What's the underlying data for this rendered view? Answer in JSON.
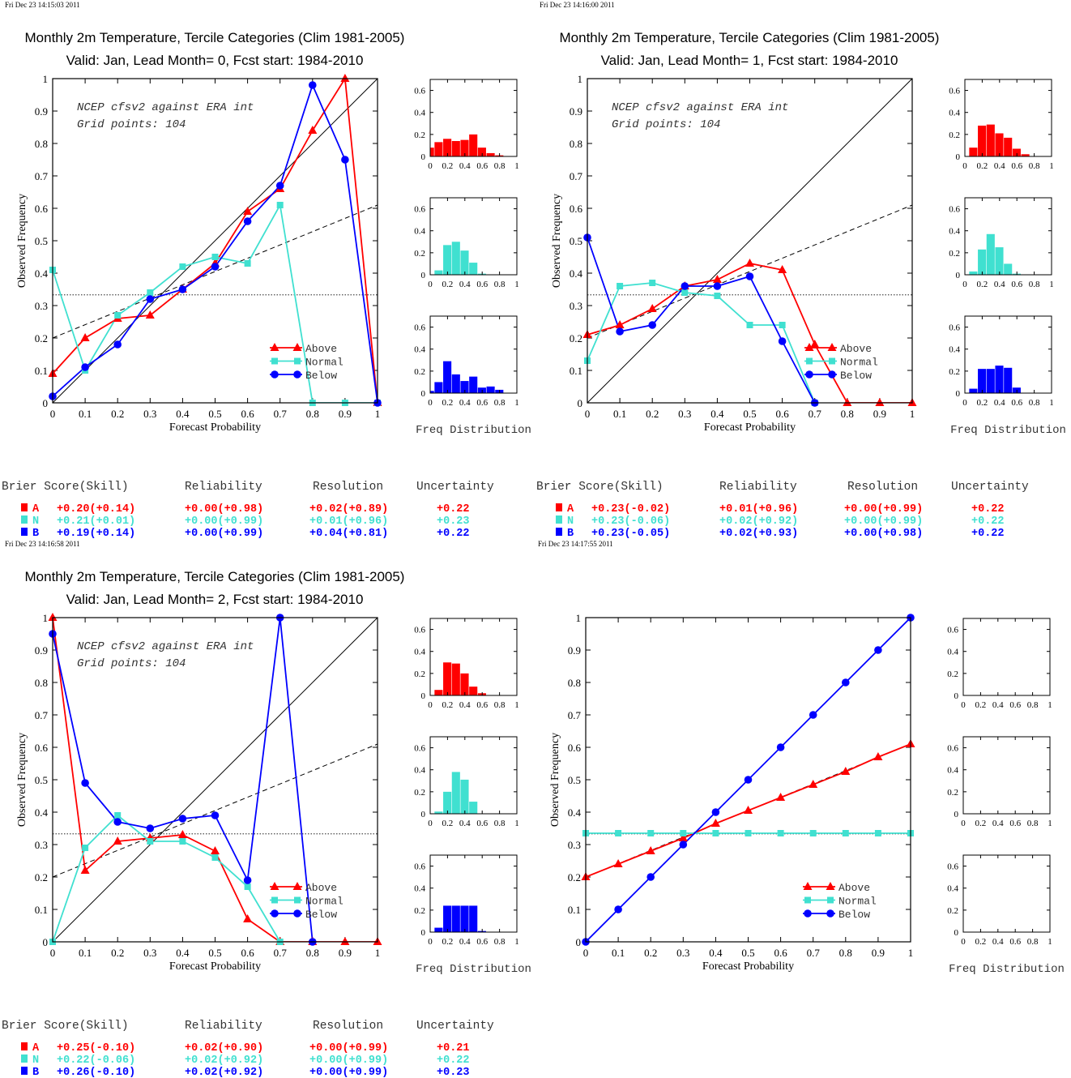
{
  "colors": {
    "above": "#ff0000",
    "normal": "#40e0d0",
    "below": "#0000ff",
    "axis": "#000000"
  },
  "labels": {
    "xlabel": "Forecast Probability",
    "ylabel": "Observed Frequency",
    "freq_label": "Freq Distribution",
    "legend": [
      "Above",
      "Normal",
      "Below"
    ],
    "score_headers": [
      "Brier Score(Skill)",
      "Reliability",
      "Resolution",
      "Uncertainty"
    ],
    "cat_letters": [
      "A",
      "N",
      "B"
    ]
  },
  "ticks": {
    "main_x": [
      "0",
      "0.1",
      "0.2",
      "0.3",
      "0.4",
      "0.5",
      "0.6",
      "0.7",
      "0.8",
      "0.9",
      "1"
    ],
    "main_y": [
      "0",
      "0.1",
      "0.2",
      "0.3",
      "0.4",
      "0.5",
      "0.6",
      "0.7",
      "0.8",
      "0.9",
      "1"
    ],
    "hist_x": [
      "0",
      "0.2",
      "0.4",
      "0.6",
      "0.8",
      "1"
    ],
    "hist_y": [
      "0",
      "0.2",
      "0.4",
      "0.6"
    ]
  },
  "chart_data": [
    {
      "type": "line",
      "timestamp": "Fri Dec 23 14:15:03 2011",
      "title": "Monthly 2m Temperature, Tercile Categories (Clim 1981-2005)",
      "subtitle": "Valid: Jan, Lead Month= 0, Fcst start: 1984-2010",
      "annotation": [
        "NCEP cfsv2 against ERA int",
        "Grid points:  104"
      ],
      "xlim": [
        0,
        1
      ],
      "ylim": [
        0,
        1
      ],
      "series": [
        {
          "name": "Above",
          "marker": "triangle",
          "x": [
            0,
            0.1,
            0.2,
            0.3,
            0.4,
            0.5,
            0.6,
            0.7,
            0.8,
            0.9,
            1
          ],
          "y": [
            0.09,
            0.2,
            0.26,
            0.27,
            0.35,
            0.43,
            0.59,
            0.66,
            0.84,
            1.0,
            0
          ]
        },
        {
          "name": "Normal",
          "marker": "square",
          "x": [
            0,
            0.1,
            0.2,
            0.3,
            0.4,
            0.5,
            0.6,
            0.7,
            0.8,
            0.9,
            1
          ],
          "y": [
            0.41,
            0.1,
            0.27,
            0.34,
            0.42,
            0.45,
            0.43,
            0.61,
            0,
            0,
            0
          ]
        },
        {
          "name": "Below",
          "marker": "circle",
          "x": [
            0,
            0.1,
            0.2,
            0.3,
            0.4,
            0.5,
            0.6,
            0.7,
            0.8,
            0.9,
            1
          ],
          "y": [
            0.02,
            0.11,
            0.18,
            0.32,
            0.35,
            0.42,
            0.56,
            0.67,
            0.98,
            0.75,
            0
          ]
        }
      ],
      "histograms": {
        "Above": [
          0.08,
          0.13,
          0.16,
          0.14,
          0.15,
          0.2,
          0.08,
          0.03,
          0.01,
          0,
          0
        ],
        "Normal": [
          0,
          0.04,
          0.27,
          0.3,
          0.22,
          0.11,
          0.01,
          0,
          0,
          0,
          0
        ],
        "Below": [
          0.02,
          0.1,
          0.29,
          0.17,
          0.11,
          0.15,
          0.05,
          0.06,
          0.03,
          0,
          0
        ]
      },
      "scores": {
        "A": [
          "+0.20(+0.14)",
          "+0.00(+0.98)",
          "+0.02(+0.89)",
          "+0.22"
        ],
        "N": [
          "+0.21(+0.01)",
          "+0.00(+0.99)",
          "+0.01(+0.96)",
          "+0.23"
        ],
        "B": [
          "+0.19(+0.14)",
          "+0.00(+0.99)",
          "+0.04(+0.81)",
          "+0.22"
        ]
      }
    },
    {
      "type": "line",
      "timestamp": "Fri Dec 23 14:16:00 2011",
      "title": "Monthly 2m Temperature, Tercile Categories (Clim 1981-2005)",
      "subtitle": "Valid: Jan, Lead Month= 1, Fcst start: 1984-2010",
      "annotation": [
        "NCEP cfsv2 against ERA int",
        "Grid points:  104"
      ],
      "xlim": [
        0,
        1
      ],
      "ylim": [
        0,
        1
      ],
      "series": [
        {
          "name": "Above",
          "marker": "triangle",
          "x": [
            0,
            0.1,
            0.2,
            0.3,
            0.4,
            0.5,
            0.6,
            0.7,
            0.8,
            0.9,
            1
          ],
          "y": [
            0.21,
            0.24,
            0.29,
            0.36,
            0.38,
            0.43,
            0.41,
            0.18,
            0,
            0,
            0
          ]
        },
        {
          "name": "Normal",
          "marker": "square",
          "x": [
            0,
            0.1,
            0.2,
            0.3,
            0.4,
            0.5,
            0.6,
            0.7
          ],
          "y": [
            0.13,
            0.36,
            0.37,
            0.34,
            0.33,
            0.24,
            0.24,
            0
          ]
        },
        {
          "name": "Below",
          "marker": "circle",
          "x": [
            0,
            0.1,
            0.2,
            0.3,
            0.4,
            0.5,
            0.6,
            0.7
          ],
          "y": [
            0.51,
            0.22,
            0.24,
            0.36,
            0.36,
            0.39,
            0.19,
            0
          ]
        }
      ],
      "histograms": {
        "Above": [
          0,
          0.08,
          0.28,
          0.29,
          0.21,
          0.17,
          0.07,
          0.02,
          0,
          0,
          0
        ],
        "Normal": [
          0,
          0.03,
          0.23,
          0.37,
          0.25,
          0.1,
          0.01,
          0,
          0,
          0,
          0
        ],
        "Below": [
          0,
          0.04,
          0.22,
          0.22,
          0.25,
          0.23,
          0.05,
          0,
          0,
          0,
          0
        ]
      },
      "scores": {
        "A": [
          "+0.23(-0.02)",
          "+0.01(+0.96)",
          "+0.00(+0.99)",
          "+0.22"
        ],
        "N": [
          "+0.23(-0.06)",
          "+0.02(+0.92)",
          "+0.00(+0.99)",
          "+0.22"
        ],
        "B": [
          "+0.23(-0.05)",
          "+0.02(+0.93)",
          "+0.00(+0.98)",
          "+0.22"
        ]
      }
    },
    {
      "type": "line",
      "timestamp": "Fri Dec 23 14:16:58 2011",
      "title": "Monthly 2m Temperature, Tercile Categories (Clim 1981-2005)",
      "subtitle": "Valid: Jan, Lead Month= 2, Fcst start: 1984-2010",
      "annotation": [
        "NCEP cfsv2 against ERA int",
        "Grid points:  104"
      ],
      "xlim": [
        0,
        1
      ],
      "ylim": [
        0,
        1
      ],
      "series": [
        {
          "name": "Above",
          "marker": "triangle",
          "x": [
            0,
            0.1,
            0.2,
            0.3,
            0.4,
            0.5,
            0.6,
            0.7,
            0.8,
            0.9,
            1
          ],
          "y": [
            1.0,
            0.22,
            0.31,
            0.32,
            0.33,
            0.28,
            0.07,
            0,
            0,
            0,
            0
          ]
        },
        {
          "name": "Normal",
          "marker": "square",
          "x": [
            0,
            0.1,
            0.2,
            0.3,
            0.4,
            0.5,
            0.6,
            0.7
          ],
          "y": [
            0,
            0.29,
            0.39,
            0.31,
            0.31,
            0.26,
            0.17,
            0
          ]
        },
        {
          "name": "Below",
          "marker": "circle",
          "x": [
            0,
            0.1,
            0.2,
            0.3,
            0.4,
            0.5,
            0.6,
            0.7,
            0.8
          ],
          "y": [
            0.95,
            0.49,
            0.37,
            0.35,
            0.38,
            0.39,
            0.19,
            1.0,
            0
          ]
        }
      ],
      "histograms": {
        "Above": [
          0,
          0.05,
          0.3,
          0.29,
          0.2,
          0.08,
          0.02,
          0,
          0,
          0,
          0
        ],
        "Normal": [
          0,
          0.02,
          0.2,
          0.38,
          0.31,
          0.11,
          0,
          0,
          0,
          0,
          0
        ],
        "Below": [
          0,
          0.04,
          0.24,
          0.24,
          0.24,
          0.24,
          0.01,
          0,
          0,
          0,
          0
        ]
      },
      "scores": {
        "A": [
          "+0.25(-0.10)",
          "+0.02(+0.90)",
          "+0.00(+0.99)",
          "+0.21"
        ],
        "N": [
          "+0.22(-0.06)",
          "+0.02(+0.92)",
          "+0.00(+0.99)",
          "+0.22"
        ],
        "B": [
          "+0.26(-0.10)",
          "+0.02(+0.92)",
          "+0.00(+0.99)",
          "+0.23"
        ]
      }
    },
    {
      "type": "line",
      "timestamp": "Fri Dec 23 14:17:55 2011",
      "xlim": [
        0,
        1
      ],
      "ylim": [
        0,
        1
      ],
      "series": [
        {
          "name": "Above",
          "marker": "triangle",
          "x": [
            0,
            0.1,
            0.2,
            0.3,
            0.4,
            0.5,
            0.6,
            0.7,
            0.8,
            0.9,
            1
          ],
          "y": [
            0.2,
            0.24,
            0.28,
            0.32,
            0.365,
            0.405,
            0.445,
            0.485,
            0.525,
            0.57,
            0.61
          ]
        },
        {
          "name": "Normal",
          "marker": "square",
          "x": [
            0,
            0.1,
            0.2,
            0.3,
            0.4,
            0.5,
            0.6,
            0.7,
            0.8,
            0.9,
            1
          ],
          "y": [
            0.335,
            0.335,
            0.335,
            0.335,
            0.335,
            0.335,
            0.335,
            0.335,
            0.335,
            0.335,
            0.335
          ]
        },
        {
          "name": "Below",
          "marker": "circle",
          "x": [
            0,
            0.1,
            0.2,
            0.3,
            0.4,
            0.5,
            0.6,
            0.7,
            0.8,
            0.9,
            1
          ],
          "y": [
            0,
            0.1,
            0.2,
            0.3,
            0.4,
            0.5,
            0.6,
            0.7,
            0.8,
            0.9,
            1.0
          ]
        }
      ],
      "histograms": null,
      "scores": null
    }
  ]
}
